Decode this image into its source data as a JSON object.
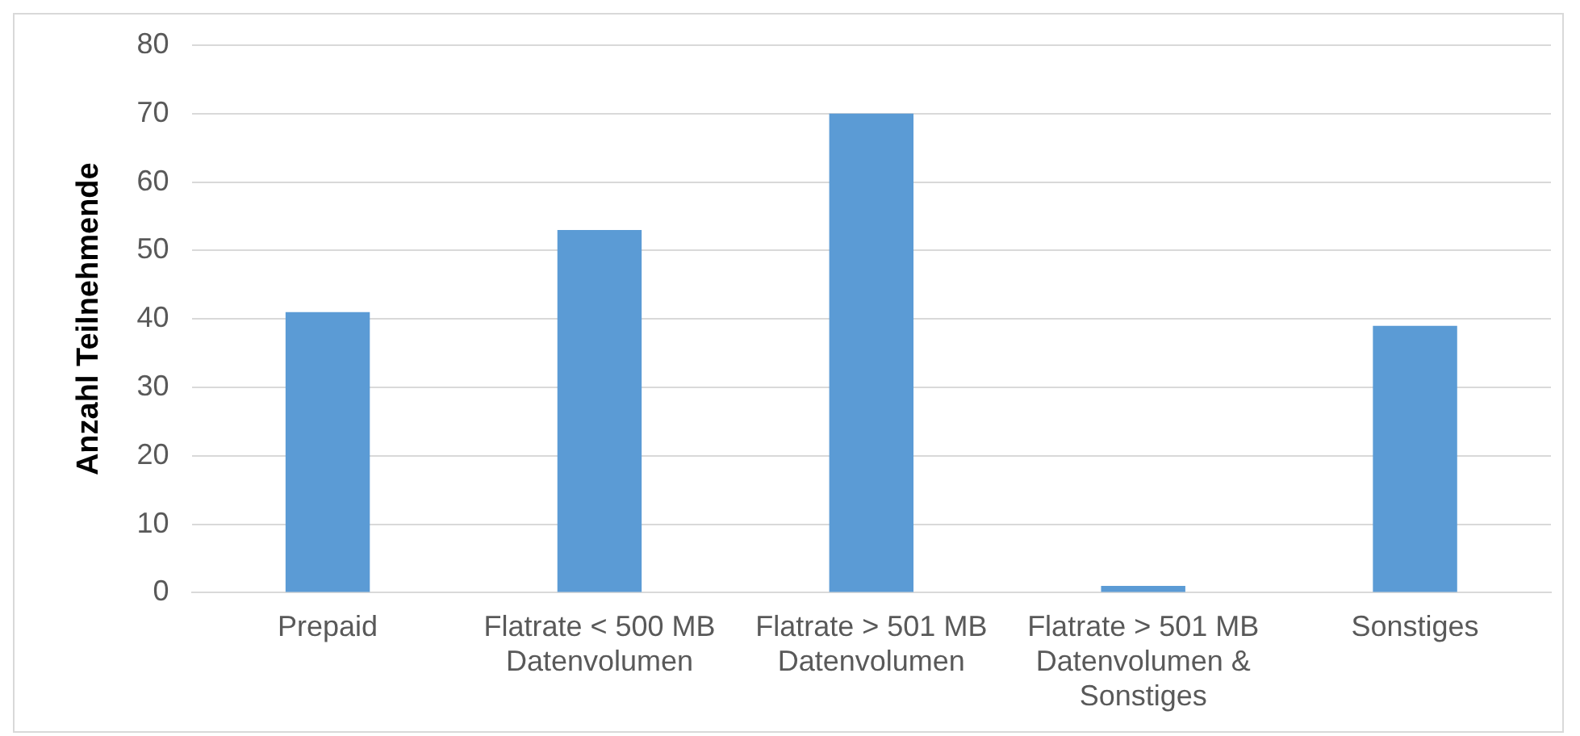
{
  "chart_data": {
    "type": "bar",
    "ylabel": "Anzahl Teilnehmende",
    "categories": [
      "Prepaid",
      "Flatrate < 500 MB Datenvolumen",
      "Flatrate > 501 MB Datenvolumen",
      "Flatrate > 501 MB Datenvolumen & Sonstiges",
      "Sonstiges"
    ],
    "values": [
      41,
      53,
      70,
      1,
      39
    ],
    "color": "#5b9bd5",
    "ylim": [
      0,
      80
    ],
    "yticks": [
      0,
      10,
      20,
      30,
      40,
      50,
      60,
      70,
      80
    ],
    "grid": "y",
    "legend": false
  }
}
